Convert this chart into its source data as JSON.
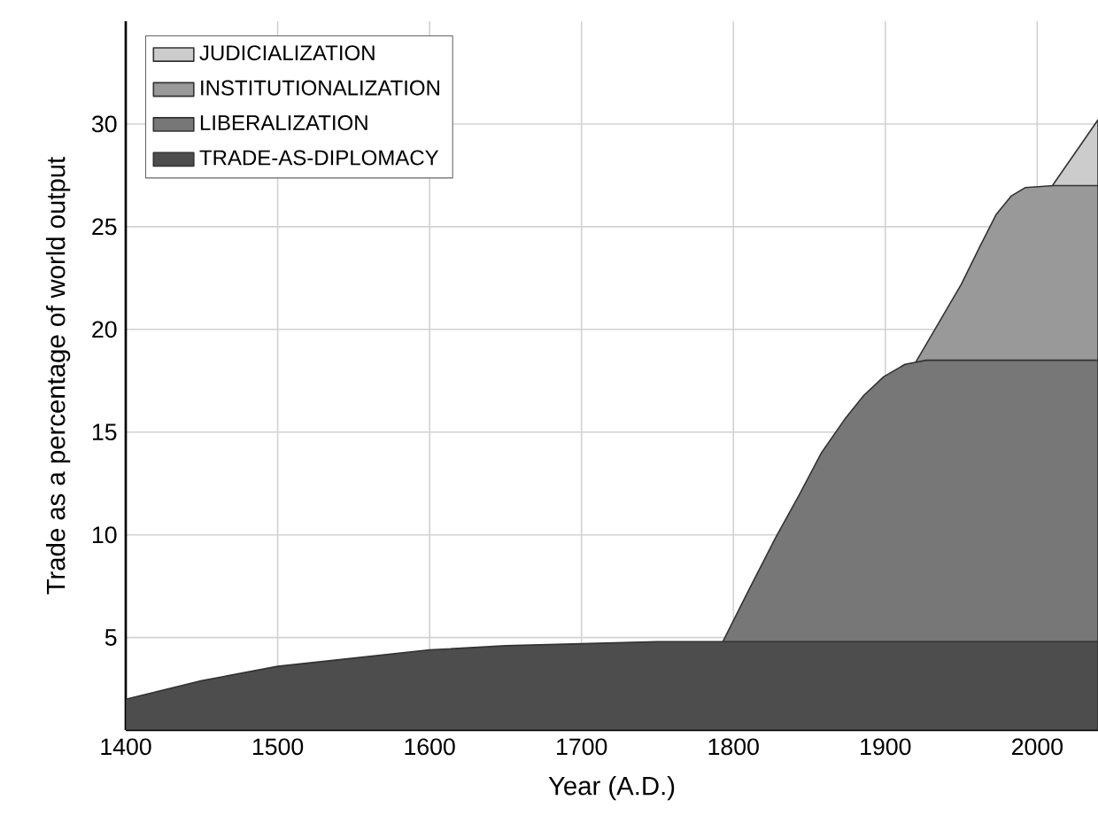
{
  "chart_data": {
    "type": "area",
    "xlabel": "Year (A.D.)",
    "ylabel": "Trade as a percentage of world output",
    "xlim": [
      1400,
      2040
    ],
    "ylim": [
      0.5,
      35
    ],
    "xticks": [
      1400,
      1500,
      1600,
      1700,
      1800,
      1900,
      2000
    ],
    "yticks": [
      5,
      10,
      15,
      20,
      25,
      30
    ],
    "grid": true,
    "legend": "top left",
    "series": [
      {
        "name": "JUDICIALIZATION",
        "color": "#cccccc",
        "x": [
          2010,
          2040
        ],
        "values": [
          27.0,
          30.2
        ]
      },
      {
        "name": "INSTITUTIONALIZATION",
        "color": "#999999",
        "x": [
          1920,
          1935,
          1950,
          1962,
          1973,
          1983,
          1992,
          2011,
          2040
        ],
        "values": [
          18.4,
          20.3,
          22.2,
          24.0,
          25.6,
          26.5,
          26.9,
          27.0,
          27.0
        ]
      },
      {
        "name": "LIBERALIZATION",
        "color": "#777777",
        "x": [
          1793,
          1810,
          1828,
          1843,
          1858,
          1873,
          1886,
          1899,
          1913,
          1927,
          2040
        ],
        "values": [
          4.8,
          7.3,
          9.9,
          11.9,
          14.0,
          15.6,
          16.8,
          17.7,
          18.3,
          18.5,
          18.5
        ]
      },
      {
        "name": "TRADE-AS-DIPLOMACY",
        "color": "#4d4d4d",
        "x": [
          1400,
          1450,
          1500,
          1550,
          1600,
          1650,
          1700,
          1750,
          1800,
          2040
        ],
        "values": [
          2.0,
          2.9,
          3.6,
          4.0,
          4.4,
          4.6,
          4.7,
          4.8,
          4.8,
          4.8
        ]
      }
    ]
  }
}
